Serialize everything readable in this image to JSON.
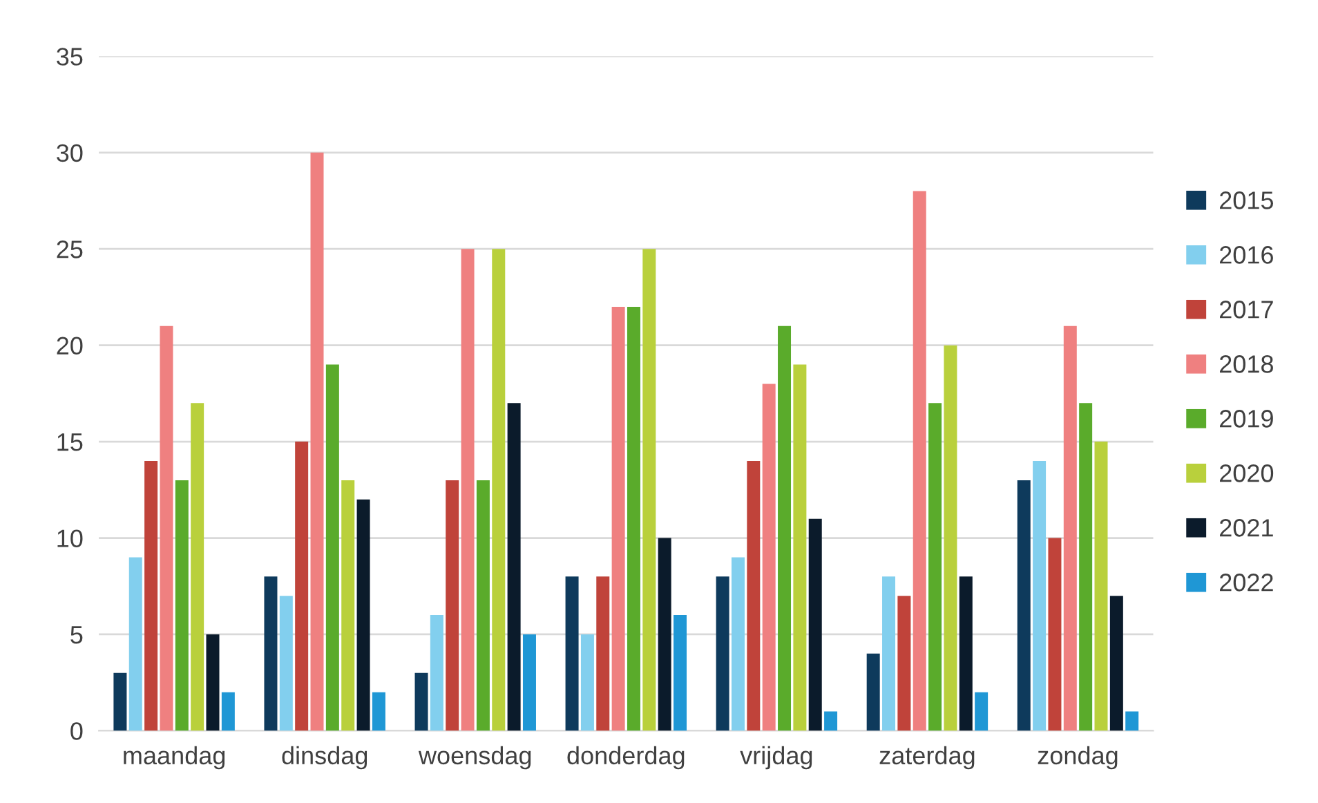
{
  "chart_data": {
    "type": "bar",
    "categories": [
      "maandag",
      "dinsdag",
      "woensdag",
      "donderdag",
      "vrijdag",
      "zaterdag",
      "zondag"
    ],
    "series": [
      {
        "name": "2015",
        "color": "#0e3a5c",
        "values": [
          3,
          8,
          3,
          8,
          8,
          4,
          13
        ]
      },
      {
        "name": "2016",
        "color": "#82cfee",
        "values": [
          9,
          7,
          6,
          5,
          9,
          8,
          14
        ]
      },
      {
        "name": "2017",
        "color": "#c0433a",
        "values": [
          14,
          15,
          13,
          8,
          14,
          7,
          10
        ]
      },
      {
        "name": "2018",
        "color": "#ef8080",
        "values": [
          21,
          30,
          25,
          22,
          18,
          28,
          21
        ]
      },
      {
        "name": "2019",
        "color": "#5aab2b",
        "values": [
          13,
          19,
          13,
          22,
          21,
          17,
          17
        ]
      },
      {
        "name": "2020",
        "color": "#b9d03c",
        "values": [
          17,
          13,
          25,
          25,
          19,
          20,
          15
        ]
      },
      {
        "name": "2021",
        "color": "#0b1b2b",
        "values": [
          5,
          12,
          17,
          10,
          11,
          8,
          7
        ]
      },
      {
        "name": "2022",
        "color": "#1f97d5",
        "values": [
          2,
          2,
          5,
          6,
          1,
          2,
          1
        ]
      }
    ],
    "ylim": [
      0,
      35
    ],
    "yticks": [
      0,
      5,
      10,
      15,
      20,
      25,
      30,
      35
    ],
    "grid": "y",
    "legend": "right"
  }
}
